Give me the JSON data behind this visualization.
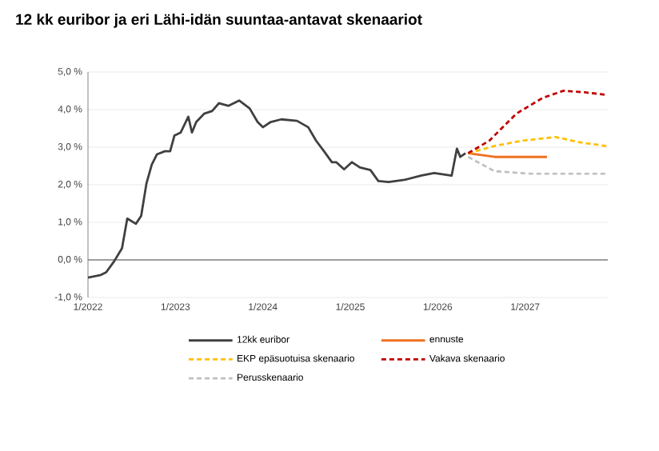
{
  "chart_data": {
    "type": "line",
    "title": "12 kk euribor ja eri Lähi-idän suuntaa-antavat skenaariot",
    "xlim": [
      "2022-01-01",
      "2027-12-12"
    ],
    "ylim": [
      -1,
      5
    ],
    "xticks": [
      {
        "value": "2022-01-01",
        "label": "1/2022"
      },
      {
        "value": "2023-01-01",
        "label": "1/2023"
      },
      {
        "value": "2024-01-01",
        "label": "1/2024"
      },
      {
        "value": "2025-01-01",
        "label": "1/2025"
      },
      {
        "value": "2026-01-01",
        "label": "1/2026"
      },
      {
        "value": "2027-01-01",
        "label": "1/2027"
      }
    ],
    "yticks": [
      {
        "value": -1,
        "label": "-1,0 %"
      },
      {
        "value": 0,
        "label": "0,0 %"
      },
      {
        "value": 1,
        "label": "1,0 %"
      },
      {
        "value": 2,
        "label": "2,0 %"
      },
      {
        "value": 3,
        "label": "3,0 %"
      },
      {
        "value": 4,
        "label": "4,0 %"
      },
      {
        "value": 5,
        "label": "5,0 %"
      }
    ],
    "grid": "y",
    "legend": "bottom",
    "ref_lines": [
      {
        "axis": "y",
        "value": 0,
        "color": "#808080"
      }
    ],
    "series": [
      {
        "name": "12kk euribor",
        "color": "#404040",
        "line_style": "solid",
        "x": [
          "2022-01-01",
          "2022-02-24",
          "2022-03-18",
          "2022-04-20",
          "2022-05-23",
          "2022-06-14",
          "2022-07-20",
          "2022-08-11",
          "2022-09-02",
          "2022-09-24",
          "2022-10-16",
          "2022-11-18",
          "2022-12-10",
          "2022-12-28",
          "2023-01-23",
          "2023-02-24",
          "2023-03-11",
          "2023-03-29",
          "2023-05-01",
          "2023-06-03",
          "2023-07-02",
          "2023-08-11",
          "2023-09-24",
          "2023-11-07",
          "2023-12-10",
          "2024-01-01",
          "2024-02-03",
          "2024-03-18",
          "2024-05-23",
          "2024-07-09",
          "2024-08-11",
          "2024-09-13",
          "2024-10-16",
          "2024-11-03",
          "2024-12-06",
          "2025-01-08",
          "2025-02-10",
          "2025-03-26",
          "2025-04-28",
          "2025-06-10",
          "2025-08-15",
          "2025-10-23",
          "2025-12-17",
          "2026-02-28",
          "2026-03-22",
          "2026-04-05",
          "2026-04-27"
        ],
        "values": [
          -0.47,
          -0.4,
          -0.33,
          -0.04,
          0.31,
          1.1,
          0.96,
          1.17,
          2.03,
          2.53,
          2.81,
          2.89,
          2.89,
          3.31,
          3.39,
          3.81,
          3.39,
          3.67,
          3.89,
          3.96,
          4.17,
          4.1,
          4.24,
          4.03,
          3.67,
          3.53,
          3.67,
          3.74,
          3.7,
          3.53,
          3.17,
          2.89,
          2.6,
          2.6,
          2.41,
          2.6,
          2.46,
          2.39,
          2.1,
          2.07,
          2.13,
          2.24,
          2.31,
          2.24,
          2.96,
          2.74,
          2.84
        ]
      },
      {
        "name": "ennuste",
        "color": "#f07020",
        "line_style": "solid",
        "x": [
          "2026-05-08",
          "2026-08-26",
          "2027-04-02"
        ],
        "values": [
          2.84,
          2.74,
          2.74
        ]
      },
      {
        "name": "EKP epäsuotuisa skenaario",
        "color": "#ffc000",
        "line_style": "dashed",
        "x": [
          "2026-05-08",
          "2026-08-26",
          "2026-12-17",
          "2027-05-08",
          "2027-08-15",
          "2027-12-06"
        ],
        "values": [
          2.84,
          3.03,
          3.17,
          3.27,
          3.13,
          3.03
        ]
      },
      {
        "name": "Vakava skenaario",
        "color": "#c00000",
        "line_style": "dashed",
        "x": [
          "2026-05-08",
          "2026-08-04",
          "2026-11-25",
          "2027-03-15",
          "2027-06-10",
          "2027-09-06",
          "2027-12-06"
        ],
        "values": [
          2.84,
          3.17,
          3.89,
          4.31,
          4.5,
          4.46,
          4.39
        ]
      },
      {
        "name": "Perusskenaario",
        "color": "#c0c0c0",
        "line_style": "dashed",
        "x": [
          "2026-05-08",
          "2026-08-26",
          "2027-01-30",
          "2027-12-06"
        ],
        "values": [
          2.74,
          2.36,
          2.29,
          2.29
        ]
      }
    ]
  }
}
